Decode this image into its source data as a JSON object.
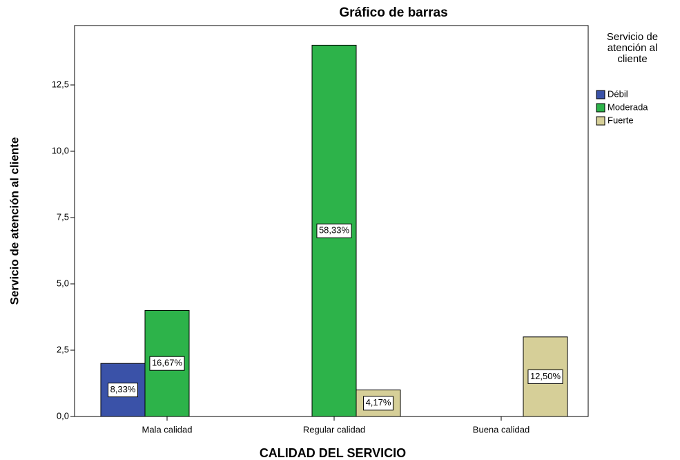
{
  "chart_data": {
    "type": "bar",
    "title": "Gráfico de barras",
    "x_label": "CALIDAD DEL SERVICIO",
    "y_label": "Servicio de atención al cliente",
    "legend_title": "Servicio de atención al cliente",
    "categories": [
      "Mala calidad",
      "Regular calidad",
      "Buena calidad"
    ],
    "series": [
      {
        "name": "Débil",
        "color": "#3a52a8",
        "values": [
          2,
          null,
          null
        ],
        "percents": [
          8.33,
          null,
          null
        ],
        "percent_labels": [
          "8,33%",
          null,
          null
        ]
      },
      {
        "name": "Moderada",
        "color": "#2db34a",
        "values": [
          4,
          14,
          null
        ],
        "percents": [
          16.67,
          58.33,
          null
        ],
        "percent_labels": [
          "16,67%",
          "58,33%",
          null
        ]
      },
      {
        "name": "Fuerte",
        "color": "#d6cf98",
        "values": [
          null,
          1,
          3
        ],
        "percents": [
          null,
          4.17,
          12.5
        ],
        "percent_labels": [
          null,
          "4,17%",
          "12,50%"
        ]
      }
    ],
    "ylim": [
      0,
      14.74
    ],
    "yticks": [
      {
        "value": 0,
        "label": "0,0"
      },
      {
        "value": 2.5,
        "label": "2,5"
      },
      {
        "value": 5,
        "label": "5,0"
      },
      {
        "value": 7.5,
        "label": "7,5"
      },
      {
        "value": 10,
        "label": "10,0"
      },
      {
        "value": 12.5,
        "label": "12,5"
      }
    ],
    "legend": "right"
  }
}
